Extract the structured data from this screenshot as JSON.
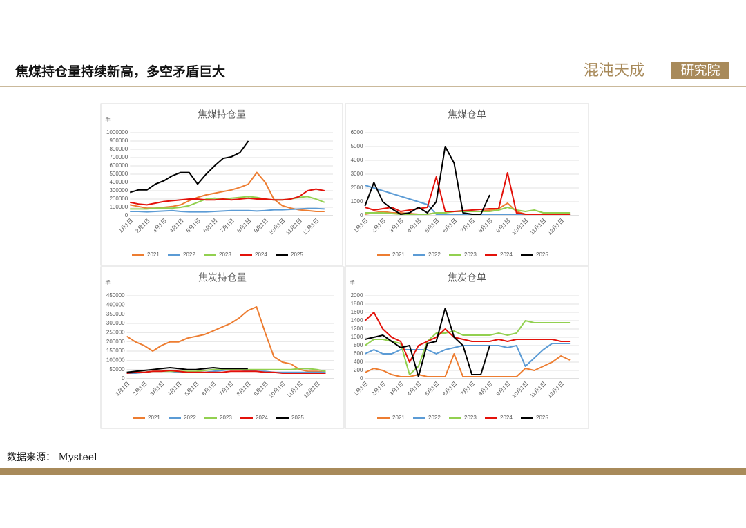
{
  "header": {
    "title": "焦煤持仓量持续新高，多空矛盾巨大",
    "logo": "混沌天成",
    "logo_box": "研究院"
  },
  "source": "数据来源： Mysteel",
  "chart_data": [
    {
      "type": "line",
      "title": "焦煤持仓量",
      "y_unit": "手",
      "categories": [
        "1月1日",
        null,
        "2月1日",
        null,
        "3月1日",
        null,
        "4月1日",
        null,
        "5月1日",
        null,
        "6月1日",
        null,
        "7月1日",
        null,
        "8月1日",
        null,
        "9月1日",
        null,
        "10月1日",
        null,
        "11月1日",
        null,
        "12月1日",
        null
      ],
      "ylim": [
        0,
        1000000
      ],
      "yticks": [
        0,
        100000,
        200000,
        300000,
        400000,
        500000,
        600000,
        700000,
        800000,
        900000,
        1000000
      ],
      "grid": true,
      "series": [
        {
          "name": "2021",
          "color": "#ED7D31",
          "values": [
            130000,
            110000,
            90000,
            90000,
            100000,
            110000,
            130000,
            180000,
            220000,
            250000,
            270000,
            290000,
            310000,
            340000,
            380000,
            520000,
            400000,
            200000,
            120000,
            90000,
            70000,
            60000,
            50000,
            50000
          ]
        },
        {
          "name": "2022",
          "color": "#5B9BD5",
          "values": [
            50000,
            50000,
            45000,
            50000,
            55000,
            60000,
            50000,
            45000,
            45000,
            45000,
            50000,
            55000,
            60000,
            60000,
            60000,
            55000,
            60000,
            70000,
            70000,
            75000,
            80000,
            85000,
            85000,
            80000
          ]
        },
        {
          "name": "2023",
          "color": "#92D050",
          "values": [
            80000,
            80000,
            80000,
            90000,
            90000,
            90000,
            100000,
            120000,
            160000,
            200000,
            210000,
            200000,
            210000,
            220000,
            230000,
            220000,
            200000,
            190000,
            190000,
            200000,
            220000,
            230000,
            200000,
            160000
          ]
        },
        {
          "name": "2024",
          "color": "#E3120B",
          "values": [
            160000,
            140000,
            130000,
            150000,
            170000,
            180000,
            190000,
            200000,
            200000,
            190000,
            190000,
            200000,
            190000,
            200000,
            210000,
            200000,
            200000,
            190000,
            190000,
            200000,
            230000,
            300000,
            320000,
            300000
          ]
        },
        {
          "name": "2025",
          "color": "#000000",
          "values": [
            280000,
            310000,
            310000,
            380000,
            420000,
            480000,
            520000,
            520000,
            380000,
            500000,
            600000,
            690000,
            710000,
            760000,
            900000,
            null,
            null,
            null,
            null,
            null,
            null,
            null,
            null,
            null
          ]
        }
      ]
    },
    {
      "type": "line",
      "title": "焦煤仓单",
      "categories": [
        "1月1日",
        null,
        "2月1日",
        null,
        "3月1日",
        null,
        "4月1日",
        null,
        "5月1日",
        null,
        "6月1日",
        null,
        "7月1日",
        null,
        "8月1日",
        null,
        "9月1日",
        null,
        "10月1日",
        null,
        "11月1日",
        null,
        "12月1日",
        null
      ],
      "ylim": [
        0,
        6000
      ],
      "yticks": [
        0,
        1000,
        2000,
        3000,
        4000,
        5000,
        6000
      ],
      "grid": true,
      "series": [
        {
          "name": "2021",
          "color": "#ED7D31",
          "values": [
            100,
            200,
            300,
            200,
            200,
            150,
            100,
            100,
            200,
            200,
            300,
            300,
            300,
            300,
            400,
            500,
            900,
            300,
            100,
            100,
            100,
            100,
            100,
            100
          ]
        },
        {
          "name": "2022",
          "color": "#5B9BD5",
          "values": [
            2200,
            2000,
            1800,
            1600,
            1400,
            1200,
            1000,
            800,
            100,
            100,
            100,
            100,
            100,
            100,
            100,
            100,
            100,
            100,
            100,
            100,
            100,
            100,
            100,
            100
          ]
        },
        {
          "name": "2023",
          "color": "#92D050",
          "values": [
            200,
            200,
            200,
            150,
            100,
            100,
            100,
            100,
            200,
            200,
            300,
            300,
            300,
            300,
            300,
            400,
            600,
            400,
            300,
            400,
            200,
            200,
            200,
            200
          ]
        },
        {
          "name": "2024",
          "color": "#E3120B",
          "values": [
            600,
            400,
            500,
            600,
            300,
            400,
            500,
            600,
            2800,
            300,
            300,
            350,
            400,
            450,
            500,
            500,
            3100,
            200,
            100,
            100,
            100,
            100,
            100,
            100
          ]
        },
        {
          "name": "2025",
          "color": "#000000",
          "values": [
            700,
            2400,
            1000,
            500,
            100,
            200,
            600,
            200,
            1000,
            5000,
            3800,
            200,
            100,
            100,
            1500,
            null,
            null,
            null,
            null,
            null,
            null,
            null,
            null,
            null
          ]
        }
      ]
    },
    {
      "type": "line",
      "title": "焦炭持仓量",
      "y_unit": "手",
      "categories": [
        "1月1日",
        null,
        "2月1日",
        null,
        "3月1日",
        null,
        "4月1日",
        null,
        "5月1日",
        null,
        "6月1日",
        null,
        "7月1日",
        null,
        "8月1日",
        null,
        "9月1日",
        null,
        "10月1日",
        null,
        "11月1日",
        null,
        "12月1日",
        null
      ],
      "ylim": [
        0,
        450000
      ],
      "yticks": [
        0,
        50000,
        100000,
        150000,
        200000,
        250000,
        300000,
        350000,
        400000,
        450000
      ],
      "grid": true,
      "series": [
        {
          "name": "2021",
          "color": "#ED7D31",
          "values": [
            230000,
            200000,
            180000,
            150000,
            180000,
            200000,
            200000,
            220000,
            230000,
            240000,
            260000,
            280000,
            300000,
            330000,
            370000,
            390000,
            250000,
            120000,
            90000,
            80000,
            50000,
            40000,
            40000,
            35000
          ]
        },
        {
          "name": "2022",
          "color": "#5B9BD5",
          "values": [
            30000,
            30000,
            35000,
            40000,
            40000,
            40000,
            35000,
            35000,
            35000,
            35000,
            40000,
            45000,
            50000,
            50000,
            45000,
            40000,
            40000,
            35000,
            35000,
            35000,
            35000,
            35000,
            35000,
            35000
          ]
        },
        {
          "name": "2023",
          "color": "#92D050",
          "values": [
            35000,
            35000,
            35000,
            40000,
            40000,
            40000,
            40000,
            40000,
            40000,
            45000,
            50000,
            50000,
            50000,
            50000,
            50000,
            50000,
            50000,
            50000,
            50000,
            50000,
            55000,
            55000,
            50000,
            40000
          ]
        },
        {
          "name": "2024",
          "color": "#E3120B",
          "values": [
            30000,
            35000,
            35000,
            40000,
            40000,
            45000,
            40000,
            35000,
            35000,
            35000,
            35000,
            35000,
            40000,
            40000,
            40000,
            40000,
            35000,
            35000,
            30000,
            30000,
            30000,
            30000,
            30000,
            30000
          ]
        },
        {
          "name": "2025",
          "color": "#000000",
          "values": [
            35000,
            40000,
            45000,
            50000,
            55000,
            60000,
            55000,
            50000,
            50000,
            55000,
            60000,
            55000,
            55000,
            55000,
            55000,
            null,
            null,
            null,
            null,
            null,
            null,
            null,
            null,
            null
          ]
        }
      ]
    },
    {
      "type": "line",
      "title": "焦炭仓单",
      "y_unit": "手",
      "categories": [
        "1月1日",
        null,
        "2月1日",
        null,
        "3月1日",
        null,
        "4月1日",
        null,
        "5月1日",
        null,
        "6月1日",
        null,
        "7月1日",
        null,
        "8月1日",
        null,
        "9月1日",
        null,
        "10月1日",
        null,
        "11月1日",
        null,
        "12月1日",
        null
      ],
      "ylim": [
        0,
        2000
      ],
      "yticks": [
        0,
        200,
        400,
        600,
        800,
        1000,
        1200,
        1400,
        1600,
        1800,
        2000
      ],
      "grid": true,
      "series": [
        {
          "name": "2021",
          "color": "#ED7D31",
          "values": [
            150,
            250,
            200,
            100,
            50,
            50,
            100,
            50,
            50,
            50,
            600,
            50,
            50,
            50,
            50,
            50,
            50,
            50,
            250,
            200,
            300,
            400,
            550,
            450
          ]
        },
        {
          "name": "2022",
          "color": "#5B9BD5",
          "values": [
            600,
            700,
            600,
            600,
            700,
            700,
            700,
            700,
            600,
            700,
            750,
            800,
            800,
            800,
            800,
            800,
            750,
            800,
            300,
            500,
            700,
            850,
            850,
            850
          ]
        },
        {
          "name": "2023",
          "color": "#92D050",
          "values": [
            800,
            950,
            950,
            900,
            850,
            100,
            300,
            900,
            1100,
            1100,
            1150,
            1050,
            1050,
            1050,
            1050,
            1100,
            1050,
            1100,
            1400,
            1350,
            1350,
            1350,
            1350,
            1350
          ]
        },
        {
          "name": "2024",
          "color": "#E3120B",
          "values": [
            1400,
            1600,
            1200,
            1000,
            900,
            400,
            800,
            900,
            1000,
            1200,
            1000,
            950,
            900,
            900,
            900,
            950,
            900,
            950,
            950,
            950,
            950,
            950,
            900,
            900
          ]
        },
        {
          "name": "2025",
          "color": "#000000",
          "values": [
            950,
            1000,
            1050,
            900,
            750,
            800,
            50,
            850,
            900,
            1700,
            1000,
            800,
            100,
            100,
            800,
            null,
            null,
            null,
            null,
            null,
            null,
            null,
            null,
            null
          ]
        }
      ]
    }
  ]
}
